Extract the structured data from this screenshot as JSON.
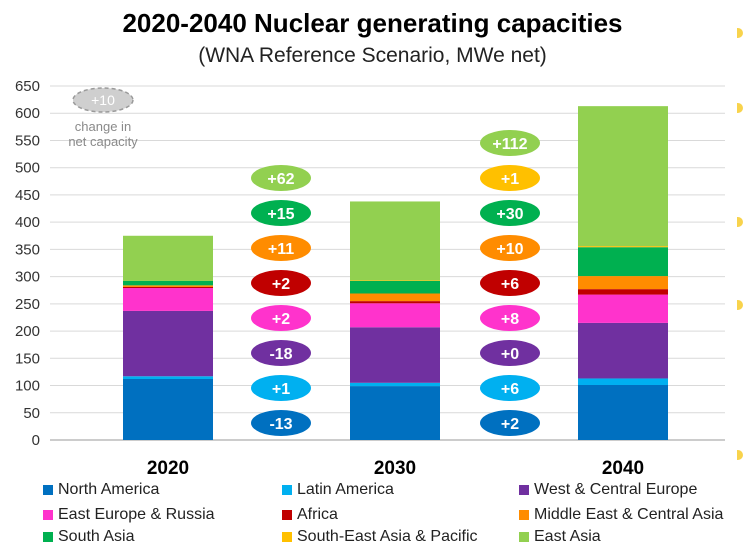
{
  "chart_data": {
    "type": "bar",
    "stacked": true,
    "title": "2020-2040 Nuclear generating capacities",
    "subtitle": "(WNA Reference Scenario, MWe net)",
    "categories": [
      "2020",
      "2030",
      "2040"
    ],
    "ylim": [
      0,
      650
    ],
    "yticks": [
      0,
      50,
      100,
      150,
      200,
      250,
      300,
      350,
      400,
      450,
      500,
      550,
      600,
      650
    ],
    "grid": true,
    "series": [
      {
        "name": "North America",
        "color": "#0070c0",
        "values": [
          112,
          99,
          101
        ]
      },
      {
        "name": "Latin America",
        "color": "#00b0f0",
        "values": [
          5,
          6,
          12
        ]
      },
      {
        "name": "West & Central Europe",
        "color": "#7030a0",
        "values": [
          120,
          102,
          102
        ]
      },
      {
        "name": "East Europe & Russia",
        "color": "#ff33cc",
        "values": [
          42,
          44,
          52
        ]
      },
      {
        "name": "Africa",
        "color": "#c00000",
        "values": [
          2,
          4,
          10
        ]
      },
      {
        "name": "Middle East & Central Asia",
        "color": "#ff8c00",
        "values": [
          3,
          14,
          24
        ]
      },
      {
        "name": "South Asia",
        "color": "#00b050",
        "values": [
          8,
          23,
          53
        ]
      },
      {
        "name": "South-East Asia & Pacific",
        "color": "#ffc000",
        "values": [
          0,
          1,
          2
        ]
      },
      {
        "name": "East Asia",
        "color": "#92d050",
        "values": [
          83,
          145,
          257
        ]
      }
    ],
    "change_labels": [
      {
        "between": "2020-2030",
        "values": [
          "+62",
          "+15",
          "+11",
          "+2",
          "+2",
          "-18",
          "+1",
          "-13"
        ]
      },
      {
        "between": "2030-2040",
        "values": [
          "+112",
          "+1",
          "+30",
          "+10",
          "+6",
          "+8",
          "+0",
          "+6",
          "+2"
        ]
      }
    ],
    "change_colors": {
      "2020-2030": [
        "#92d050",
        "#00b050",
        "#ff8c00",
        "#c00000",
        "#ff33cc",
        "#7030a0",
        "#00b0f0",
        "#0070c0"
      ],
      "2030-2040": [
        "#92d050",
        "#ffc000",
        "#00b050",
        "#ff8c00",
        "#c00000",
        "#ff33cc",
        "#7030a0",
        "#00b0f0",
        "#0070c0"
      ]
    },
    "key_note": {
      "value": "+10",
      "label_line1": "change in",
      "label_line2": "net capacity"
    },
    "legend_placement": "bottom"
  }
}
